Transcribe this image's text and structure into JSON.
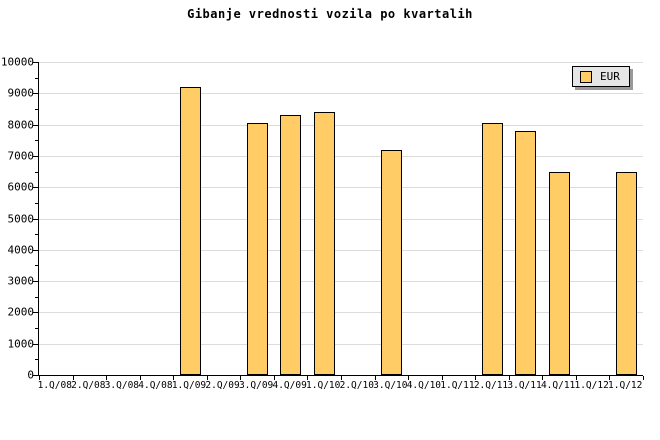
{
  "colors": {
    "bar_fill": "#FFCC66",
    "bar_border": "#000000",
    "gridline": "#DCDCDC",
    "axis": "#000000",
    "legend_background": "#E6E6E6",
    "legend_shadow": "#999999",
    "background": "#FFFFFF",
    "text": "#000000"
  },
  "chart_data": {
    "type": "bar",
    "title": "Gibanje vrednosti vozila po kvartalih",
    "xlabel": "",
    "ylabel": "",
    "categories": [
      "1.Q/08",
      "2.Q/08",
      "3.Q/08",
      "4.Q/08",
      "1.Q/09",
      "2.Q/09",
      "3.Q/09",
      "4.Q/09",
      "1.Q/10",
      "2.Q/10",
      "3.Q/10",
      "4.Q/10",
      "1.Q/11",
      "2.Q/11",
      "3.Q/11",
      "4.Q/11",
      "1.Q/12",
      "1.Q/12"
    ],
    "series": [
      {
        "name": "EUR",
        "color": "#FFCC66",
        "values": [
          null,
          null,
          null,
          null,
          9200,
          null,
          8050,
          8300,
          8400,
          null,
          7200,
          null,
          null,
          8050,
          7800,
          6500,
          null,
          6500
        ]
      }
    ],
    "ylim": [
      0,
      10000
    ],
    "y_major_tick": 1000,
    "y_minor_tick": 500,
    "grid": "horizontal-major",
    "legend_position": "top-right"
  }
}
